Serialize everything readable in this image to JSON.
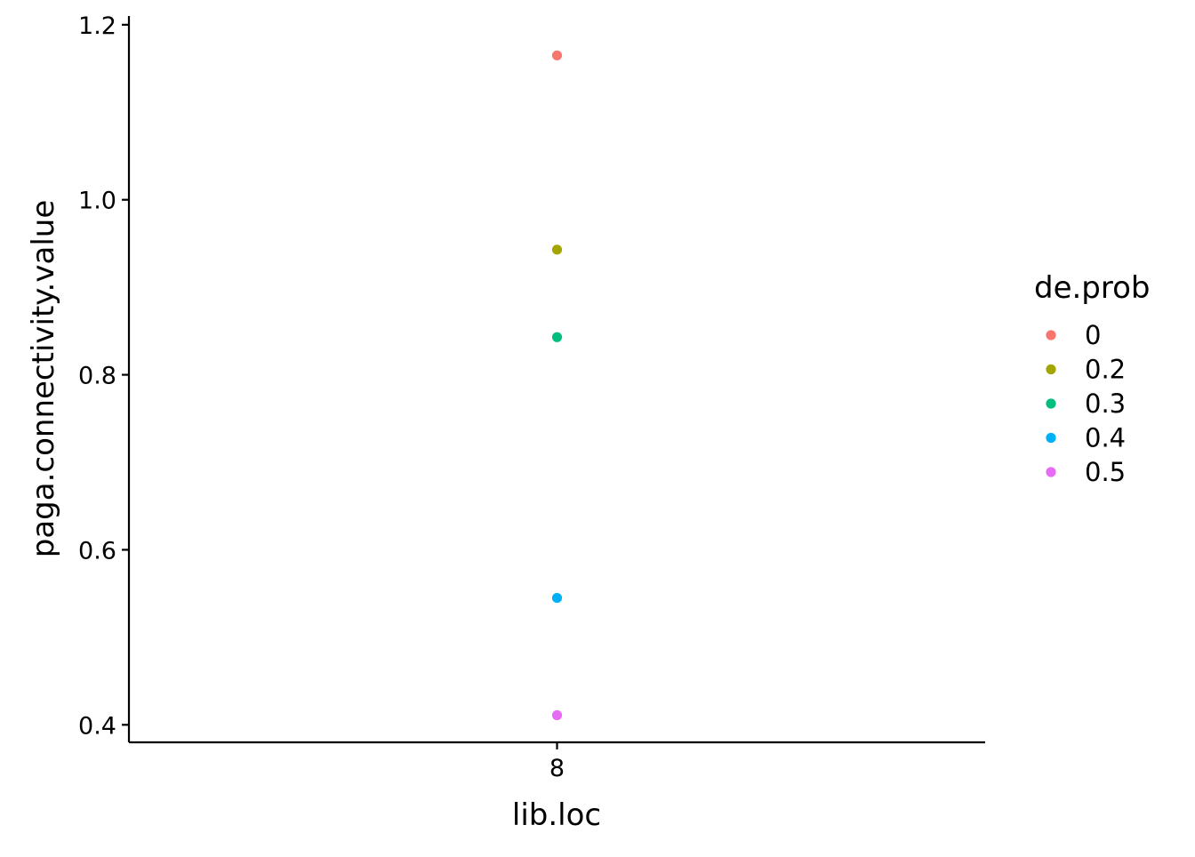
{
  "chart_data": {
    "type": "scatter",
    "title": "",
    "xlabel": "lib.loc",
    "ylabel": "paga.connectivity.value",
    "categories": [
      "8"
    ],
    "ylim": [
      0.38,
      1.21
    ],
    "yticks": [
      "0.4",
      "0.6",
      "0.8",
      "1.0",
      "1.2"
    ],
    "grid": false,
    "legend": {
      "title": "de.prob",
      "placement": "right"
    },
    "series": [
      {
        "name": "0",
        "color": "#F8766D",
        "points": [
          {
            "x": "8",
            "y": 1.165
          }
        ]
      },
      {
        "name": "0.2",
        "color": "#A3A500",
        "points": [
          {
            "x": "8",
            "y": 0.943
          }
        ]
      },
      {
        "name": "0.3",
        "color": "#00BF7D",
        "points": [
          {
            "x": "8",
            "y": 0.843
          }
        ]
      },
      {
        "name": "0.4",
        "color": "#00B0F6",
        "points": [
          {
            "x": "8",
            "y": 0.545
          }
        ]
      },
      {
        "name": "0.5",
        "color": "#E76BF3",
        "points": [
          {
            "x": "8",
            "y": 0.411
          }
        ]
      }
    ]
  }
}
